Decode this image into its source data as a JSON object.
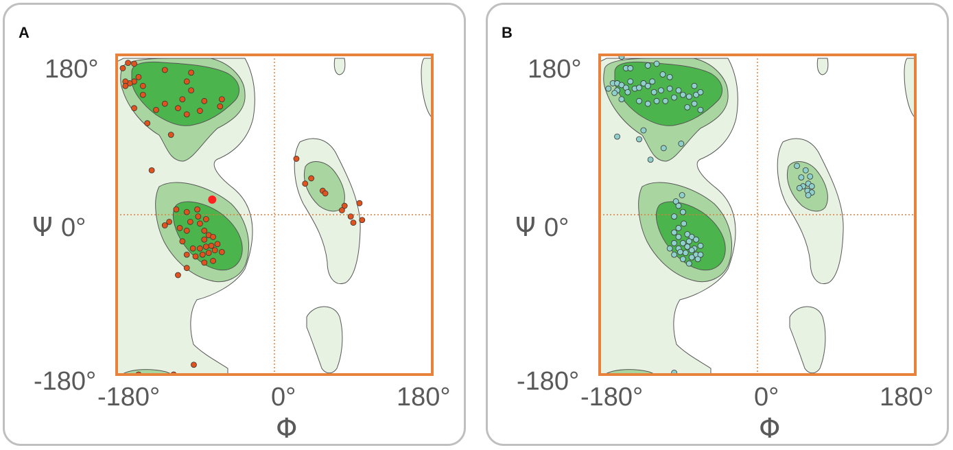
{
  "panels": [
    {
      "label": "A"
    },
    {
      "label": "B"
    }
  ],
  "colors": {
    "frame": "#e8823a",
    "guide": "#e07b39",
    "allowed": "#e8f2e3",
    "favored": "#a9d6a0",
    "core": "#4cb44c",
    "outline": "#555555",
    "points_a": "#e0531f",
    "points_a_highlight": "#ff2020",
    "points_b": "#8fd0cc"
  },
  "axes": {
    "x_title": "Φ",
    "y_title_prefix": "Ψ",
    "x_ticks": [
      "-180°",
      "0°",
      "180°"
    ],
    "y_ticks": {
      "top": "180°",
      "mid": "0°",
      "bottom": "-180°"
    }
  },
  "chart_data": [
    {
      "type": "scatter",
      "title": "",
      "xlabel": "Φ",
      "ylabel": "Ψ",
      "xlim": [
        -180,
        180
      ],
      "ylim": [
        -180,
        180
      ],
      "grid": false,
      "guide_lines": {
        "x": 0,
        "y": 0
      },
      "background": "Ramachandran contour regions",
      "series": [
        {
          "values_xy": [
            [
              -173,
              165
            ],
            [
              -167,
              171
            ],
            [
              -160,
              170
            ],
            [
              -155,
              155
            ],
            [
              -160,
              150
            ],
            [
              -165,
              148
            ],
            [
              -170,
              150
            ],
            [
              -150,
              145
            ],
            [
              -125,
              163
            ],
            [
              -95,
              160
            ],
            [
              -100,
              150
            ],
            [
              -95,
              140
            ],
            [
              -105,
              130
            ],
            [
              -110,
              120
            ],
            [
              -60,
              130
            ],
            [
              -62,
              122
            ],
            [
              -80,
              128
            ],
            [
              -150,
              135
            ],
            [
              -125,
              125
            ],
            [
              -135,
              118
            ],
            [
              -160,
              120
            ],
            [
              -100,
              113
            ],
            [
              -170,
              145
            ],
            [
              -85,
              117
            ],
            [
              -145,
              103
            ],
            [
              -118,
              90
            ],
            [
              -140,
              50
            ],
            [
              -112,
              6
            ],
            [
              -100,
              3
            ],
            [
              -88,
              6
            ],
            [
              -96,
              -8
            ],
            [
              -120,
              -8
            ],
            [
              -125,
              -12
            ],
            [
              -108,
              -15
            ],
            [
              -100,
              -18
            ],
            [
              -85,
              -10
            ],
            [
              -80,
              -18
            ],
            [
              -75,
              -23
            ],
            [
              -70,
              -25
            ],
            [
              -80,
              -28
            ],
            [
              -65,
              -33
            ],
            [
              -72,
              -35
            ],
            [
              -78,
              -36
            ],
            [
              -85,
              -38
            ],
            [
              -68,
              -40
            ],
            [
              -75,
              -43
            ],
            [
              -82,
              -45
            ],
            [
              -60,
              -42
            ],
            [
              -93,
              -38
            ],
            [
              -100,
              -45
            ],
            [
              -90,
              -47
            ],
            [
              -70,
              -52
            ],
            [
              -80,
              -54
            ],
            [
              -105,
              -30
            ],
            [
              -100,
              -60
            ],
            [
              -110,
              -68
            ],
            [
              -87,
              -2
            ],
            [
              -78,
              -5
            ],
            [
              25,
              63
            ],
            [
              35,
              35
            ],
            [
              42,
              41
            ],
            [
              55,
              27
            ],
            [
              58,
              24
            ],
            [
              80,
              10
            ],
            [
              77,
              5
            ],
            [
              87,
              -2
            ],
            [
              90,
              -9
            ],
            [
              100,
              -6
            ],
            [
              97,
              13
            ],
            [
              -92,
              -169
            ],
            [
              -115,
              -180
            ],
            [
              -155,
              -180
            ]
          ],
          "highlight": [
            [
              -71,
              17
            ]
          ]
        }
      ]
    },
    {
      "type": "scatter",
      "title": "",
      "xlabel": "Φ",
      "ylabel": "Ψ",
      "xlim": [
        -180,
        180
      ],
      "ylim": [
        -180,
        180
      ],
      "grid": false,
      "guide_lines": {
        "x": 0,
        "y": 0
      },
      "background": "Ramachandran contour regions",
      "series": [
        {
          "values_xy": [
            [
              -155,
              178
            ],
            [
              -150,
              165
            ],
            [
              -145,
              165
            ],
            [
              -125,
              168
            ],
            [
              -115,
              170
            ],
            [
              -108,
              158
            ],
            [
              -100,
              155
            ],
            [
              -165,
              148
            ],
            [
              -160,
              148
            ],
            [
              -155,
              146
            ],
            [
              -150,
              143
            ],
            [
              -145,
              150
            ],
            [
              -140,
              142
            ],
            [
              -135,
              143
            ],
            [
              -130,
              148
            ],
            [
              -125,
              145
            ],
            [
              -120,
              150
            ],
            [
              -118,
              138
            ],
            [
              -110,
              140
            ],
            [
              -115,
              128
            ],
            [
              -105,
              128
            ],
            [
              -100,
              142
            ],
            [
              -95,
              132
            ],
            [
              -90,
              140
            ],
            [
              -85,
              135
            ],
            [
              -78,
              133
            ],
            [
              -70,
              135
            ],
            [
              -65,
              138
            ],
            [
              -72,
              125
            ],
            [
              -80,
              121
            ],
            [
              -65,
              118
            ],
            [
              -72,
              145
            ],
            [
              -148,
              138
            ],
            [
              -160,
              140
            ],
            [
              -155,
              130
            ],
            [
              -135,
              128
            ],
            [
              -125,
              125
            ],
            [
              -170,
              142
            ],
            [
              -163,
              137
            ],
            [
              -130,
              95
            ],
            [
              -135,
              85
            ],
            [
              -160,
              88
            ],
            [
              -107,
              75
            ],
            [
              -87,
              80
            ],
            [
              -122,
              62
            ],
            [
              -93,
              15
            ],
            [
              -90,
              10
            ],
            [
              -85,
              3
            ],
            [
              -95,
              -2
            ],
            [
              -90,
              -15
            ],
            [
              -80,
              -22
            ],
            [
              -75,
              -25
            ],
            [
              -70,
              -28
            ],
            [
              -85,
              -32
            ],
            [
              -78,
              -30
            ],
            [
              -95,
              -32
            ],
            [
              -90,
              -38
            ],
            [
              -72,
              -38
            ],
            [
              -65,
              -35
            ],
            [
              -70,
              -45
            ],
            [
              -82,
              -43
            ],
            [
              -75,
              -48
            ],
            [
              -85,
              -50
            ],
            [
              -78,
              -55
            ],
            [
              -65,
              -45
            ],
            [
              -95,
              -45
            ],
            [
              -100,
              -38
            ],
            [
              -88,
              -42
            ],
            [
              -68,
              -50
            ],
            [
              -80,
              -36
            ],
            [
              -90,
              -25
            ],
            [
              -75,
              -40
            ],
            [
              -95,
              -20
            ],
            [
              -84,
              -10
            ],
            [
              -86,
              22
            ],
            [
              -95,
              -178
            ],
            [
              45,
              55
            ],
            [
              55,
              50
            ],
            [
              60,
              43
            ],
            [
              50,
              42
            ],
            [
              52,
              32
            ],
            [
              58,
              35
            ],
            [
              62,
              32
            ],
            [
              48,
              30
            ],
            [
              57,
              27
            ],
            [
              62,
              25
            ],
            [
              58,
              22
            ]
          ],
          "highlight": []
        }
      ]
    }
  ]
}
